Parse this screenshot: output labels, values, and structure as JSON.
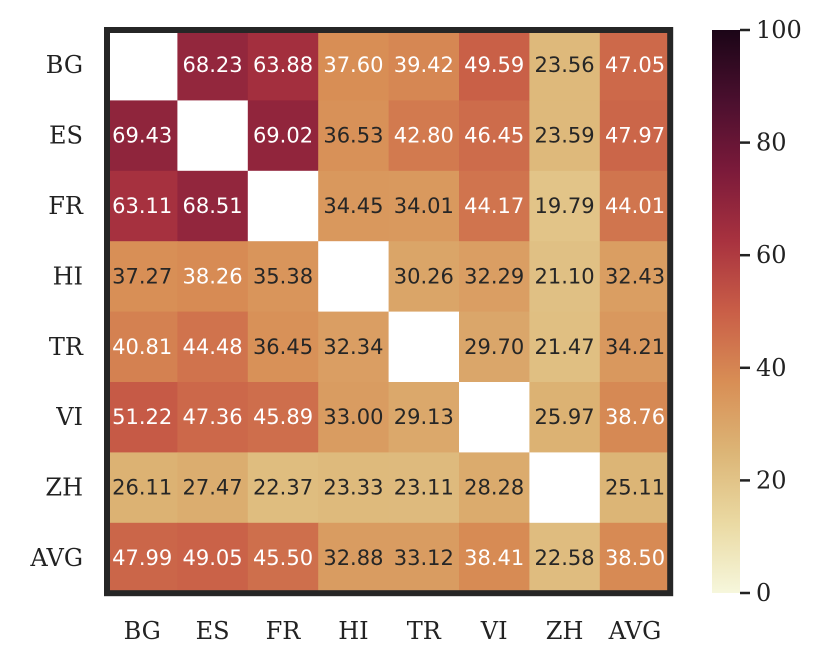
{
  "chart_data": {
    "type": "heatmap",
    "title": "",
    "xlabel": "",
    "ylabel": "",
    "rows": [
      "BG",
      "ES",
      "FR",
      "HI",
      "TR",
      "VI",
      "ZH",
      "AVG"
    ],
    "columns": [
      "BG",
      "ES",
      "FR",
      "HI",
      "TR",
      "VI",
      "ZH",
      "AVG"
    ],
    "values": [
      [
        null,
        "68.23",
        "63.88",
        "37.60",
        "39.42",
        "49.59",
        "23.56",
        "47.05"
      ],
      [
        "69.43",
        null,
        "69.02",
        "36.53",
        "42.80",
        "46.45",
        "23.59",
        "47.97"
      ],
      [
        "63.11",
        "68.51",
        null,
        "34.45",
        "34.01",
        "44.17",
        "19.79",
        "44.01"
      ],
      [
        "37.27",
        "38.26",
        "35.38",
        null,
        "30.26",
        "32.29",
        "21.10",
        "32.43"
      ],
      [
        "40.81",
        "44.48",
        "36.45",
        "32.34",
        null,
        "29.70",
        "21.47",
        "34.21"
      ],
      [
        "51.22",
        "47.36",
        "45.89",
        "33.00",
        "29.13",
        null,
        "25.97",
        "38.76"
      ],
      [
        "26.11",
        "27.47",
        "22.37",
        "23.33",
        "23.11",
        "28.28",
        null,
        "25.11"
      ],
      [
        "47.99",
        "49.05",
        "45.50",
        "32.88",
        "33.12",
        "38.41",
        "22.58",
        "38.50"
      ]
    ],
    "colorbar": {
      "range": [
        0,
        100
      ],
      "ticks": [
        "0",
        "20",
        "40",
        "60",
        "80",
        "100"
      ]
    },
    "colormap": [
      "#f6f7dc",
      "#ead9a2",
      "#dcb576",
      "#d88e55",
      "#c95e47",
      "#a8323f",
      "#7b1a3a",
      "#4a0f2e",
      "#1b0517"
    ],
    "frame_color": "#262626",
    "missing_color": "#ffffff"
  }
}
